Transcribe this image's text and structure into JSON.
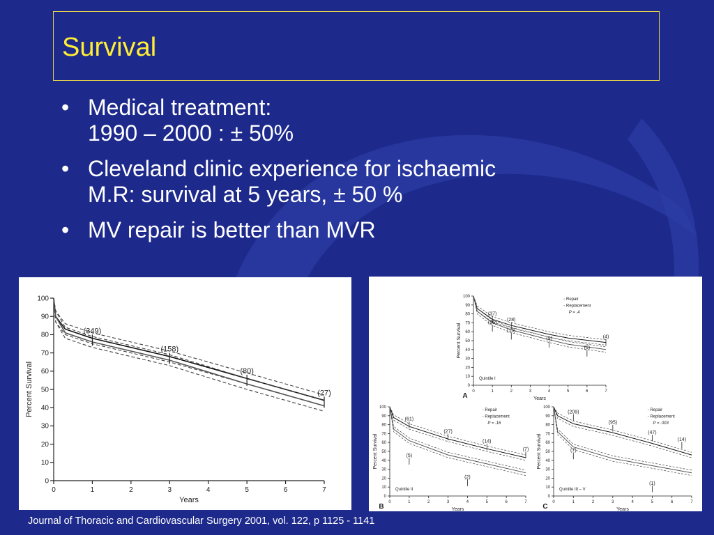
{
  "slide": {
    "title": "Survival",
    "bullets": [
      {
        "line1": "Medical treatment:",
        "line2": "1990 – 2000 : ± 50%"
      },
      {
        "line1": "Cleveland clinic experience for ischaemic",
        "line2": "M.R: survival at 5 years, ± 50 %"
      },
      {
        "line1": "MV repair is better than MVR",
        "line2": ""
      }
    ],
    "bullet_glyph": "•",
    "footer": "Journal of Thoracic and Cardiovascular Surgery 2001, vol. 122, p 1125 - 1141",
    "colors": {
      "background": "#1d2a8c",
      "title": "#ffee33",
      "border": "#e6d34a",
      "text": "#ffffff"
    }
  },
  "chart_data": [
    {
      "type": "line",
      "ylabel": "Percent Survival",
      "xlabel": "Years",
      "xticks": [
        0,
        1,
        2,
        3,
        4,
        5,
        6,
        7
      ],
      "yticks": [
        0,
        10,
        20,
        30,
        40,
        50,
        60,
        70,
        80,
        90,
        100
      ],
      "xlim": [
        0,
        7
      ],
      "ylim": [
        0,
        100
      ],
      "series": [
        {
          "values": [
            [
              0,
              100
            ],
            [
              0.05,
              90
            ],
            [
              0.3,
              83
            ],
            [
              1,
              78
            ],
            [
              3,
              68
            ],
            [
              5,
              56
            ],
            [
              7,
              44
            ]
          ]
        },
        {
          "values": [
            [
              0,
              100
            ],
            [
              0.05,
              90
            ],
            [
              0.3,
              81
            ],
            [
              1,
              76
            ],
            [
              3,
              66
            ],
            [
              5,
              53
            ],
            [
              7,
              41
            ]
          ]
        }
      ],
      "annotations": [
        {
          "x": 1,
          "y": 77,
          "text": "(349)"
        },
        {
          "x": 3,
          "y": 67,
          "text": "(158)"
        },
        {
          "x": 5,
          "y": 55,
          "text": "(80)"
        },
        {
          "x": 7,
          "y": 43,
          "text": "(27)"
        }
      ]
    },
    {
      "type": "line",
      "panel": "A",
      "ylabel": "Percent Survival",
      "xlabel": "Years",
      "legend": [
        "Repair",
        "Replacement"
      ],
      "pvalue": "P  =  .4",
      "quintile": "Quintile I",
      "xticks": [
        0,
        1,
        2,
        3,
        4,
        5,
        6,
        7
      ],
      "yticks": [
        0,
        10,
        20,
        30,
        40,
        50,
        60,
        70,
        80,
        90,
        100
      ],
      "xlim": [
        0,
        7
      ],
      "ylim": [
        0,
        100
      ],
      "series": [
        {
          "name": "Repair",
          "values": [
            [
              0,
              100
            ],
            [
              0.2,
              86
            ],
            [
              1,
              74
            ],
            [
              2,
              67
            ],
            [
              4,
              57
            ],
            [
              5,
              53
            ],
            [
              7,
              48
            ]
          ]
        },
        {
          "name": "Replacement",
          "values": [
            [
              0,
              100
            ],
            [
              0.2,
              83
            ],
            [
              1,
              70
            ],
            [
              2,
              62
            ],
            [
              4,
              51
            ],
            [
              5,
              46
            ],
            [
              7,
              40
            ]
          ]
        }
      ],
      "annotations": [
        {
          "x": 1,
          "y": 74,
          "text": "(37)"
        },
        {
          "x": 2,
          "y": 67,
          "text": "(28)"
        },
        {
          "x": 7,
          "y": 48,
          "text": "(4)"
        },
        {
          "x": 1,
          "y": 64,
          "text": "(26)"
        },
        {
          "x": 2,
          "y": 55,
          "text": "(15)"
        },
        {
          "x": 4,
          "y": 46,
          "text": "(9)"
        },
        {
          "x": 6,
          "y": 36,
          "text": "(6)"
        }
      ]
    },
    {
      "type": "line",
      "panel": "B",
      "ylabel": "Percent Survival",
      "xlabel": "Years",
      "legend": [
        "Repair",
        "Replacement"
      ],
      "pvalue": "P  =  .16",
      "quintile": "Quintile II",
      "xticks": [
        0,
        1,
        2,
        3,
        4,
        5,
        6,
        7
      ],
      "yticks": [
        0,
        10,
        20,
        30,
        40,
        50,
        60,
        70,
        80,
        90,
        100
      ],
      "xlim": [
        0,
        7
      ],
      "ylim": [
        0,
        100
      ],
      "series": [
        {
          "name": "Repair",
          "values": [
            [
              0,
              100
            ],
            [
              0.2,
              88
            ],
            [
              1,
              78
            ],
            [
              3,
              64
            ],
            [
              5,
              53
            ],
            [
              7,
              43
            ]
          ]
        },
        {
          "name": "Replacement",
          "values": [
            [
              0,
              100
            ],
            [
              0.2,
              75
            ],
            [
              1,
              62
            ],
            [
              3,
              46
            ],
            [
              5,
              36
            ],
            [
              7,
              26
            ]
          ]
        }
      ],
      "annotations": [
        {
          "x": 1,
          "y": 80,
          "text": "(61)"
        },
        {
          "x": 3,
          "y": 66,
          "text": "(27)"
        },
        {
          "x": 5,
          "y": 55,
          "text": "(14)"
        },
        {
          "x": 7,
          "y": 46,
          "text": "(7)"
        },
        {
          "x": 1,
          "y": 39,
          "text": "(5)"
        },
        {
          "x": 4,
          "y": 15,
          "text": "(2)"
        }
      ]
    },
    {
      "type": "line",
      "panel": "C",
      "ylabel": "Percent Survival",
      "xlabel": "Years",
      "legend": [
        "Repair",
        "Replacement"
      ],
      "pvalue": "P  =  .003",
      "quintile": "Quintile III – V",
      "xticks": [
        0,
        1,
        2,
        3,
        4,
        5,
        6,
        7
      ],
      "yticks": [
        0,
        10,
        20,
        30,
        40,
        50,
        60,
        70,
        80,
        90,
        100
      ],
      "xlim": [
        0,
        7
      ],
      "ylim": [
        0,
        100
      ],
      "series": [
        {
          "name": "Repair",
          "values": [
            [
              0,
              100
            ],
            [
              0.2,
              90
            ],
            [
              1,
              81
            ],
            [
              3,
              71
            ],
            [
              5,
              59
            ],
            [
              7,
              46
            ]
          ]
        },
        {
          "name": "Replacement",
          "values": [
            [
              0,
              100
            ],
            [
              0.2,
              72
            ],
            [
              1,
              55
            ],
            [
              3,
              42
            ],
            [
              5,
              34
            ],
            [
              7,
              26
            ]
          ]
        }
      ],
      "annotations": [
        {
          "x": 1,
          "y": 88,
          "text": "(209)"
        },
        {
          "x": 3,
          "y": 76,
          "text": "(95)"
        },
        {
          "x": 5,
          "y": 65,
          "text": "(47)"
        },
        {
          "x": 6.5,
          "y": 57,
          "text": "(14)"
        },
        {
          "x": 1,
          "y": 45,
          "text": "(7)"
        },
        {
          "x": 5,
          "y": 8,
          "text": "(1)"
        }
      ]
    }
  ]
}
